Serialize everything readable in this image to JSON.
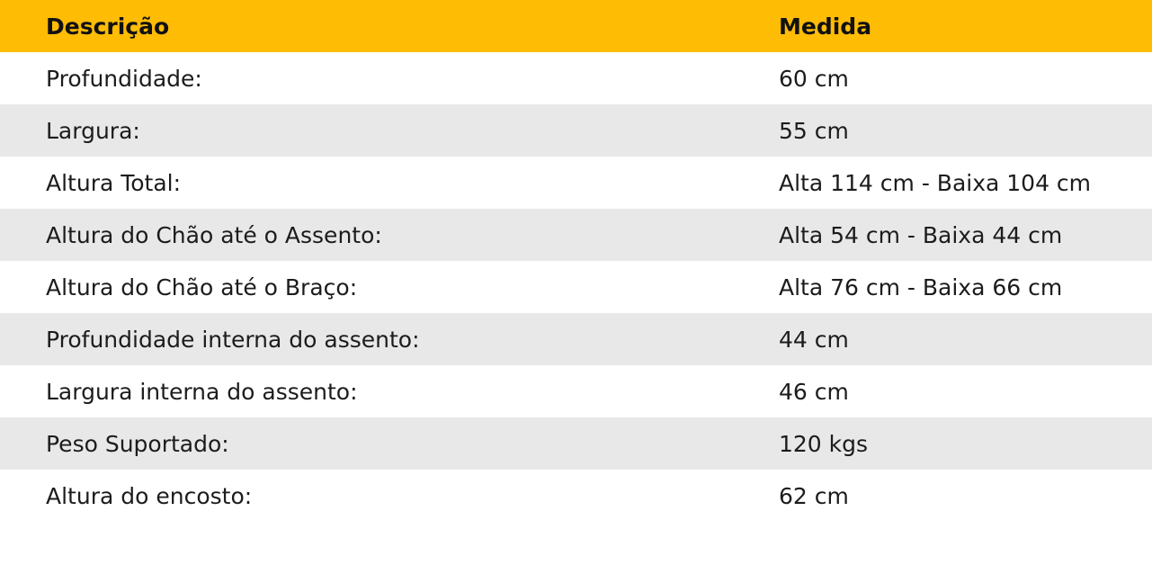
{
  "table": {
    "header": {
      "col1": "Descrição",
      "col2": "Medida"
    },
    "rows": [
      {
        "label": "Profundidade:",
        "value": "60 cm"
      },
      {
        "label": "Largura:",
        "value": "55 cm"
      },
      {
        "label": "Altura Total:",
        "value": "Alta 114 cm - Baixa 104 cm"
      },
      {
        "label": "Altura do Chão até o Assento:",
        "value": "Alta 54 cm - Baixa 44 cm"
      },
      {
        "label": "Altura do Chão até o Braço:",
        "value": "Alta 76 cm - Baixa 66 cm"
      },
      {
        "label": "Profundidade interna do assento:",
        "value": "44 cm"
      },
      {
        "label": "Largura interna do assento:",
        "value": "46 cm"
      },
      {
        "label": "Peso Suportado:",
        "value": "120 kgs"
      },
      {
        "label": "Altura do encosto:",
        "value": "62 cm"
      }
    ],
    "colors": {
      "header_bg": "#FFBC05",
      "row_bg": "#FFFFFF",
      "row_alt_bg": "#E8E8E8",
      "header_text": "#111111",
      "body_text": "#1C1C1C"
    }
  }
}
